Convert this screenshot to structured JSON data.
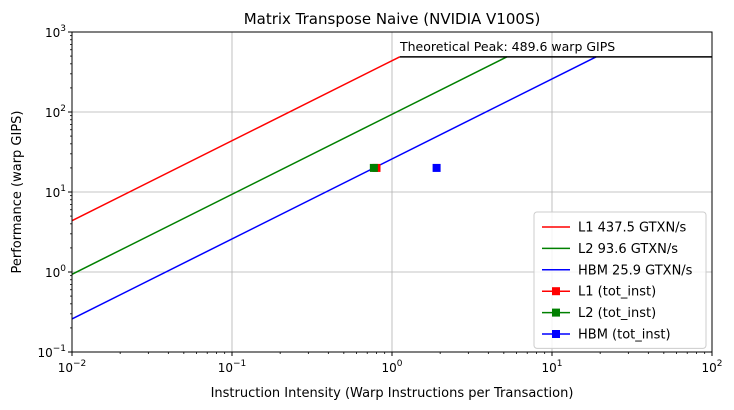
{
  "chart_data": {
    "type": "line",
    "title": "Matrix Transpose Naive (NVIDIA V100S)",
    "xlabel": "Instruction Intensity (Warp Instructions per Transaction)",
    "ylabel": "Performance (warp GIPS)",
    "xscale": "log",
    "yscale": "log",
    "xlim": [
      0.01,
      100
    ],
    "ylim": [
      0.1,
      1000
    ],
    "xticks": [
      {
        "base": "10",
        "exp": "−2"
      },
      {
        "base": "10",
        "exp": "−1"
      },
      {
        "base": "10",
        "exp": "0"
      },
      {
        "base": "10",
        "exp": "1"
      },
      {
        "base": "10",
        "exp": "2"
      }
    ],
    "yticks": [
      {
        "base": "10",
        "exp": "−1"
      },
      {
        "base": "10",
        "exp": "0"
      },
      {
        "base": "10",
        "exp": "1"
      },
      {
        "base": "10",
        "exp": "2"
      },
      {
        "base": "10",
        "exp": "3"
      }
    ],
    "grid": true,
    "legend_position": "bottom-right",
    "peak": {
      "value": 489.6,
      "label": "Theoretical Peak: 489.6 warp GIPS",
      "color": "#000000"
    },
    "roofs": [
      {
        "name": "L1 437.5 GTXN/s",
        "bandwidth": 437.5,
        "color": "#ff0000"
      },
      {
        "name": "L2 93.6 GTXN/s",
        "bandwidth": 93.6,
        "color": "#008000"
      },
      {
        "name": "HBM 25.9 GTXN/s",
        "bandwidth": 25.9,
        "color": "#0000ff"
      }
    ],
    "points": [
      {
        "name": "L1 (tot_inst)",
        "x": 0.8,
        "y": 20,
        "color": "#ff0000"
      },
      {
        "name": "L2 (tot_inst)",
        "x": 0.77,
        "y": 20,
        "color": "#008000"
      },
      {
        "name": "HBM (tot_inst)",
        "x": 1.9,
        "y": 20,
        "color": "#0000ff"
      }
    ]
  }
}
